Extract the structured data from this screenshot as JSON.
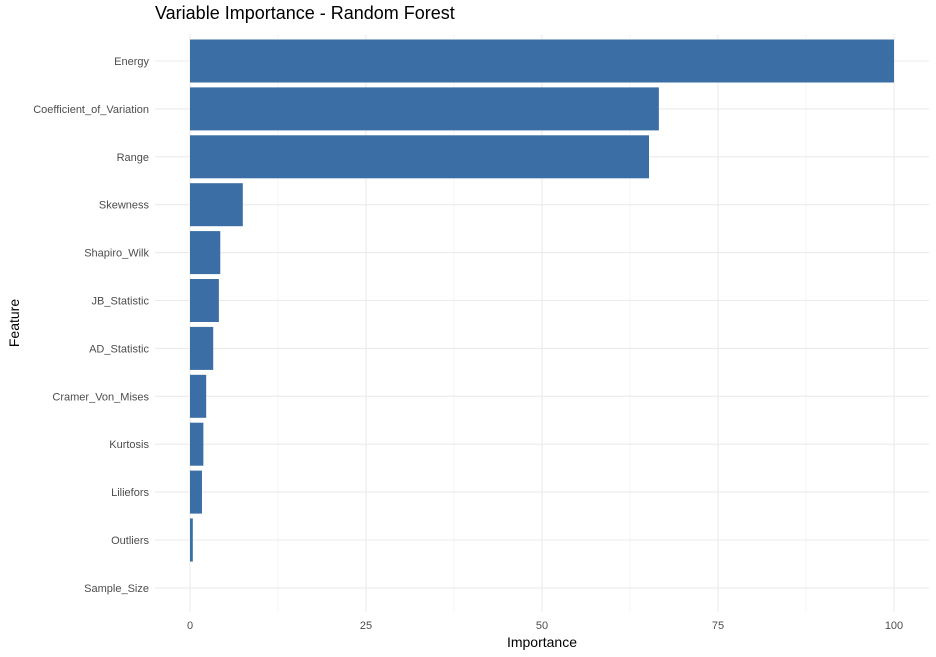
{
  "chart_data": {
    "type": "bar",
    "orientation": "horizontal",
    "title": "Variable Importance - Random Forest",
    "xlabel": "Importance",
    "ylabel": "Feature",
    "xlim": [
      0,
      100
    ],
    "x_ticks": [
      "0",
      "25",
      "50",
      "75",
      "100"
    ],
    "grid": true,
    "bar_color": "#3A6EA5",
    "categories": [
      "Energy",
      "Coefficient_of_Variation",
      "Range",
      "Skewness",
      "Shapiro_Wilk",
      "JB_Statistic",
      "AD_Statistic",
      "Cramer_Von_Mises",
      "Kurtosis",
      "Liliefors",
      "Outliers",
      "Sample_Size"
    ],
    "values": [
      100,
      66.6,
      65.2,
      7.5,
      4.3,
      4.1,
      3.3,
      2.3,
      1.9,
      1.7,
      0.4,
      0
    ]
  }
}
